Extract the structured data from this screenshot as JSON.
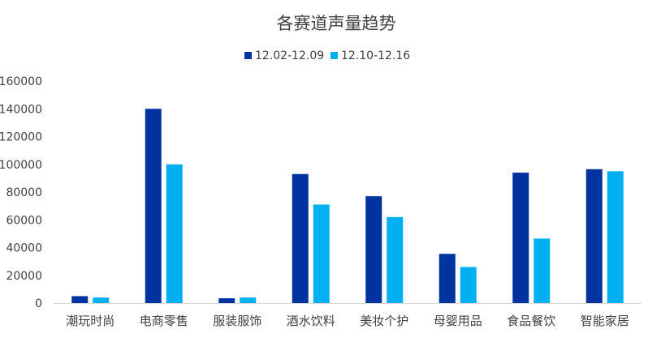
{
  "chart_data": {
    "type": "bar",
    "title": "各赛道声量趋势",
    "xlabel": "",
    "ylabel": "",
    "categories": [
      "潮玩时尚",
      "电商零售",
      "服装服饰",
      "酒水饮料",
      "美妆个护",
      "母婴用品",
      "食品餐饮",
      "智能家居"
    ],
    "series": [
      {
        "name": "12.02-12.09",
        "color": "#0033a0",
        "values": [
          5000,
          140000,
          3500,
          93000,
          77000,
          35500,
          94000,
          96500
        ]
      },
      {
        "name": "12.10-12.16",
        "color": "#00b0f0",
        "values": [
          4000,
          100000,
          4000,
          71000,
          62000,
          26000,
          46500,
          95000
        ]
      }
    ],
    "ylim": [
      0,
      160000
    ],
    "yticks": [
      "0",
      "20000",
      "40000",
      "60000",
      "80000",
      "100000",
      "120000",
      "140000",
      "160000"
    ],
    "grid": false,
    "legend_position": "top"
  }
}
